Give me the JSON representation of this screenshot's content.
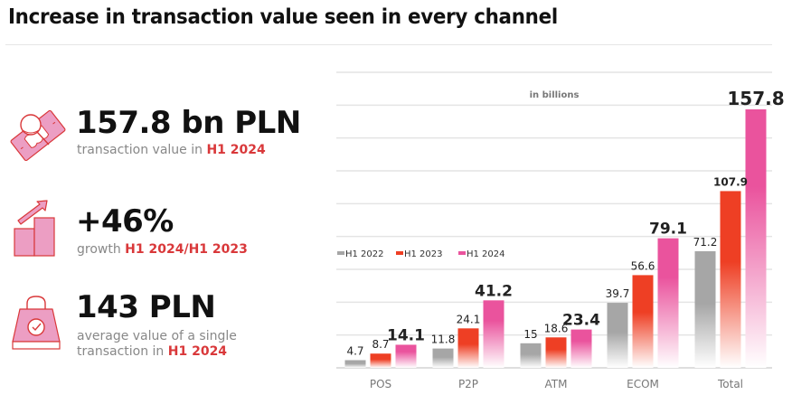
{
  "header": {
    "title": "Increase in transaction value seen in every channel"
  },
  "kpis": [
    {
      "icon": "money-magnifier-icon",
      "value": "157.8 bn PLN",
      "text": "transaction value in ",
      "highlight": "H1 2024"
    },
    {
      "icon": "growth-chart-arrow-icon",
      "value": "+46%",
      "text": "growth ",
      "highlight": "H1 2024/H1 2023"
    },
    {
      "icon": "shopping-bag-check-icon",
      "value": "143 PLN",
      "text": "average value of a single transaction in ",
      "highlight": "H1 2024"
    }
  ],
  "colors": {
    "h1_2022": "#a6a6a6",
    "h1_2023": "#ee3f24",
    "h1_2024": "#ea539d",
    "highlight_text": "#d9383a",
    "icon_fill": "#ec9ec3",
    "icon_stroke": "#d9383a"
  },
  "chart_data": {
    "type": "bar",
    "title": "",
    "unit_note": "in billions",
    "xlabel": "",
    "ylabel": "",
    "categories": [
      "POS",
      "P2P",
      "ATM",
      "ECOM",
      "Total"
    ],
    "series": [
      {
        "name": "H1 2022",
        "values": [
          4.7,
          11.8,
          15,
          39.7,
          71.2
        ]
      },
      {
        "name": "H1 2023",
        "values": [
          8.7,
          24.1,
          18.6,
          56.6,
          107.9
        ]
      },
      {
        "name": "H1 2024",
        "values": [
          14.1,
          41.2,
          23.4,
          79.1,
          157.8
        ]
      }
    ],
    "value_labels": [
      [
        "4.7",
        "11.8",
        "15",
        "39.7",
        "71.2"
      ],
      [
        "8.7",
        "24.1",
        "18.6",
        "56.6",
        "107.9"
      ],
      [
        "14.1",
        "41.2",
        "23.4",
        "79.1",
        "157.8"
      ]
    ],
    "ylim": [
      0,
      180
    ],
    "grid": true,
    "legend_position": "middle-left",
    "legend": [
      "H1 2022",
      "H1 2023",
      "H1 2024"
    ]
  }
}
